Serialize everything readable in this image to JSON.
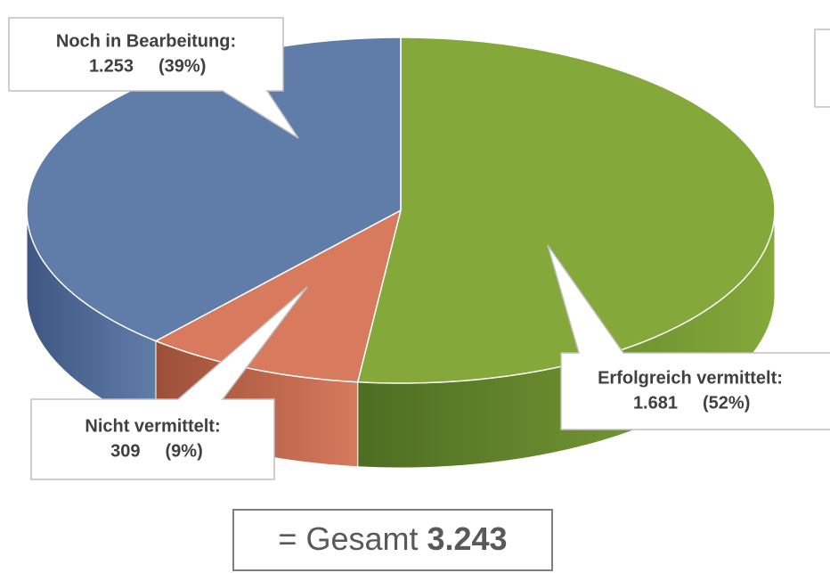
{
  "chart_data": {
    "type": "pie3d",
    "categories": [
      "Erfolgreich vermittelt:",
      "Nicht vermittelt:",
      "Noch in Bearbeitung:"
    ],
    "values": [
      1681,
      309,
      1253
    ],
    "value_labels": [
      "1.681",
      "309",
      "1.253"
    ],
    "percents": [
      52,
      9,
      39
    ],
    "percent_labels": [
      "(52%)",
      "(9%)",
      "(39%)"
    ],
    "colors": [
      "#85a83a",
      "#d77a5d",
      "#607ca9"
    ],
    "side_colors": [
      "#4d6d22",
      "#9c4f38",
      "#3f5782"
    ],
    "total": {
      "label": "= Gesamt",
      "value": 3243,
      "value_label": "3.243"
    }
  }
}
